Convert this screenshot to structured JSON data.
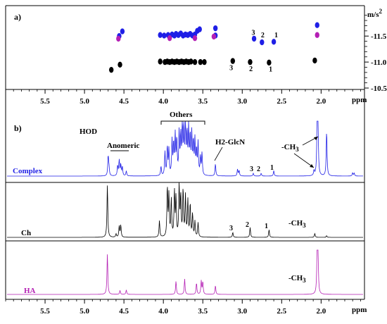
{
  "chart_data": [
    {
      "panel": "a)",
      "type": "scatter",
      "title": "",
      "xlabel": "",
      "ylabel": "m/s2",
      "ylabel_parts": {
        "base": "m/s",
        "exponent": "2"
      },
      "y_axis_position": "right",
      "y_reversed": true,
      "xlim": [
        6.0,
        1.45
      ],
      "ylim": [
        -10.5,
        -11.95
      ],
      "yticks": [
        -11.5,
        -11.0,
        -10.5
      ],
      "ytick_labels": [
        "-11.5",
        "-11.0",
        "-10.5"
      ],
      "grid": false,
      "series": [
        {
          "name": "Complex",
          "color": "#1f1fe6",
          "points": [
            [
              4.52,
              -11.59
            ],
            [
              4.56,
              -11.5
            ],
            [
              4.04,
              -11.52
            ],
            [
              3.99,
              -11.51
            ],
            [
              3.94,
              -11.52
            ],
            [
              3.89,
              -11.53
            ],
            [
              3.86,
              -11.51
            ],
            [
              3.84,
              -11.54
            ],
            [
              3.81,
              -11.52
            ],
            [
              3.78,
              -11.55
            ],
            [
              3.75,
              -11.51
            ],
            [
              3.72,
              -11.53
            ],
            [
              3.69,
              -11.52
            ],
            [
              3.66,
              -11.54
            ],
            [
              3.63,
              -11.51
            ],
            [
              3.6,
              -11.53
            ],
            [
              3.57,
              -11.6
            ],
            [
              3.54,
              -11.63
            ],
            [
              3.34,
              -11.65
            ],
            [
              3.34,
              -11.51
            ],
            [
              2.85,
              -11.45
            ],
            [
              2.75,
              -11.38
            ],
            [
              2.6,
              -11.39
            ],
            [
              2.05,
              -11.71
            ]
          ]
        },
        {
          "name": "HA",
          "color": "#b41fb4",
          "points": [
            [
              4.57,
              -11.45
            ],
            [
              3.92,
              -11.46
            ],
            [
              3.6,
              -11.46
            ],
            [
              3.36,
              -11.49
            ],
            [
              2.05,
              -11.52
            ]
          ]
        },
        {
          "name": "Ch",
          "color": "#000000",
          "points": [
            [
              4.66,
              -10.85
            ],
            [
              4.55,
              -10.95
            ],
            [
              4.04,
              -11.01
            ],
            [
              3.98,
              -11.0
            ],
            [
              3.95,
              -11.01
            ],
            [
              3.92,
              -11.0
            ],
            [
              3.89,
              -11.01
            ],
            [
              3.86,
              -11.0
            ],
            [
              3.83,
              -11.01
            ],
            [
              3.8,
              -11.0
            ],
            [
              3.77,
              -11.01
            ],
            [
              3.74,
              -11.0
            ],
            [
              3.71,
              -11.01
            ],
            [
              3.68,
              -11.0
            ],
            [
              3.65,
              -11.01
            ],
            [
              3.6,
              -11.0
            ],
            [
              3.53,
              -11.0
            ],
            [
              3.48,
              -11.0
            ],
            [
              3.12,
              -11.02
            ],
            [
              2.9,
              -11.0
            ],
            [
              2.66,
              -10.99
            ],
            [
              2.08,
              -11.03
            ]
          ]
        }
      ],
      "annotations": [
        {
          "text": "3",
          "x": 2.86,
          "y": -11.58
        },
        {
          "text": "2",
          "x": 2.74,
          "y": -11.53
        },
        {
          "text": "1",
          "x": 2.57,
          "y": -11.53
        },
        {
          "text": "3",
          "x": 3.14,
          "y": -10.9
        },
        {
          "text": "2",
          "x": 2.89,
          "y": -10.88
        },
        {
          "text": "1",
          "x": 2.64,
          "y": -10.87
        }
      ]
    },
    {
      "panel": "b)",
      "type": "line",
      "title": "",
      "xlabel": "ppm",
      "xlim": [
        6.0,
        1.45
      ],
      "x_reversed": true,
      "xticks": [
        5.5,
        5.0,
        4.5,
        4.0,
        3.5,
        3.0,
        2.5,
        2.0
      ],
      "xtick_labels": [
        "5.5",
        "5.0",
        "4.5",
        "4.0",
        "3.5",
        "3.0",
        "2.5",
        "2.0"
      ],
      "grid": false,
      "series": [
        {
          "name": "Complex",
          "color": "#1f1fe6",
          "peaks": [
            [
              4.7,
              0.36
            ],
            [
              4.69,
              0.14
            ],
            [
              4.58,
              0.18
            ],
            [
              4.56,
              0.28
            ],
            [
              4.54,
              0.2
            ],
            [
              4.52,
              0.16
            ],
            [
              4.47,
              0.09
            ],
            [
              4.03,
              0.17
            ],
            [
              3.98,
              0.43
            ],
            [
              3.95,
              0.52
            ],
            [
              3.93,
              0.46
            ],
            [
              3.89,
              0.62
            ],
            [
              3.87,
              0.55
            ],
            [
              3.85,
              0.7
            ],
            [
              3.83,
              0.63
            ],
            [
              3.8,
              0.76
            ],
            [
              3.78,
              0.69
            ],
            [
              3.76,
              0.96
            ],
            [
              3.74,
              0.82
            ],
            [
              3.72,
              0.92
            ],
            [
              3.7,
              0.72
            ],
            [
              3.68,
              0.82
            ],
            [
              3.66,
              0.68
            ],
            [
              3.64,
              0.72
            ],
            [
              3.62,
              0.58
            ],
            [
              3.6,
              0.62
            ],
            [
              3.58,
              0.44
            ],
            [
              3.56,
              0.58
            ],
            [
              3.53,
              0.33
            ],
            [
              3.51,
              0.4
            ],
            [
              3.34,
              0.22
            ],
            [
              3.06,
              0.12
            ],
            [
              3.04,
              0.1
            ],
            [
              2.86,
              0.05
            ],
            [
              2.76,
              0.05
            ],
            [
              2.6,
              0.1
            ],
            [
              2.09,
              0.09
            ],
            [
              2.05,
              0.98
            ],
            [
              2.04,
              0.93
            ],
            [
              1.93,
              0.83
            ],
            [
              1.6,
              0.06
            ],
            [
              1.58,
              0.05
            ]
          ]
        },
        {
          "name": "Ch",
          "color": "#000000",
          "peaks": [
            [
              4.71,
              0.96
            ],
            [
              4.6,
              0.06
            ],
            [
              4.56,
              0.2
            ],
            [
              4.54,
              0.22
            ],
            [
              4.05,
              0.3
            ],
            [
              3.95,
              0.91
            ],
            [
              3.93,
              0.74
            ],
            [
              3.9,
              0.68
            ],
            [
              3.86,
              0.82
            ],
            [
              3.84,
              0.7
            ],
            [
              3.8,
              0.93
            ],
            [
              3.78,
              0.73
            ],
            [
              3.75,
              0.86
            ],
            [
              3.72,
              0.74
            ],
            [
              3.69,
              0.66
            ],
            [
              3.66,
              0.6
            ],
            [
              3.63,
              0.42
            ],
            [
              3.6,
              0.28
            ],
            [
              3.56,
              0.26
            ],
            [
              3.12,
              0.09
            ],
            [
              2.9,
              0.18
            ],
            [
              2.66,
              0.14
            ],
            [
              2.08,
              0.07
            ],
            [
              1.93,
              0.03
            ]
          ]
        },
        {
          "name": "HA",
          "color": "#b41fb4",
          "peaks": [
            [
              4.71,
              0.92
            ],
            [
              4.55,
              0.09
            ],
            [
              4.47,
              0.1
            ],
            [
              3.84,
              0.3
            ],
            [
              3.73,
              0.35
            ],
            [
              3.58,
              0.26
            ],
            [
              3.52,
              0.3
            ],
            [
              3.5,
              0.28
            ],
            [
              3.34,
              0.2
            ],
            [
              2.05,
              0.98
            ],
            [
              2.04,
              0.94
            ]
          ]
        }
      ],
      "annotations": [
        {
          "text": "HOD",
          "x": 4.72,
          "series": "Complex"
        },
        {
          "text": "Anomeric",
          "x": 4.55,
          "series": "Complex"
        },
        {
          "text": "Others",
          "x": 3.79,
          "series": "Complex"
        },
        {
          "text": "H2-GlcN",
          "x": 3.15,
          "series": "Complex"
        },
        {
          "text": "3",
          "x": 2.84,
          "series": "Complex"
        },
        {
          "text": "2",
          "x": 2.75,
          "series": "Complex"
        },
        {
          "text": "1",
          "x": 2.58,
          "series": "Complex"
        },
        {
          "text": "-CH3",
          "x": 2.2,
          "series": "Complex"
        },
        {
          "text": "3",
          "x": 3.12,
          "series": "Ch"
        },
        {
          "text": "2",
          "x": 2.9,
          "series": "Ch"
        },
        {
          "text": "1",
          "x": 2.66,
          "series": "Ch"
        },
        {
          "text": "-CH3",
          "x": 2.35,
          "series": "Ch"
        },
        {
          "text": "-CH3",
          "x": 2.35,
          "series": "HA"
        }
      ]
    }
  ],
  "labels": {
    "panel_a": "a)",
    "panel_b": "b)",
    "ppm": "ppm",
    "ms_base": "m/s",
    "ms_exp": "2",
    "hod": "HOD",
    "anomeric": "Anomeric",
    "others": "Others",
    "h2glcn": "H2-GlcN",
    "ch3_base": "-CH",
    "ch3_sub": "3",
    "num1": "1",
    "num2": "2",
    "num3": "3",
    "trace_complex": "Complex",
    "trace_ch": "Ch",
    "trace_ha": "HA"
  },
  "colors": {
    "complex": "#1f1fe6",
    "ch": "#000000",
    "ha": "#b41fb4",
    "frame": "#000000"
  }
}
